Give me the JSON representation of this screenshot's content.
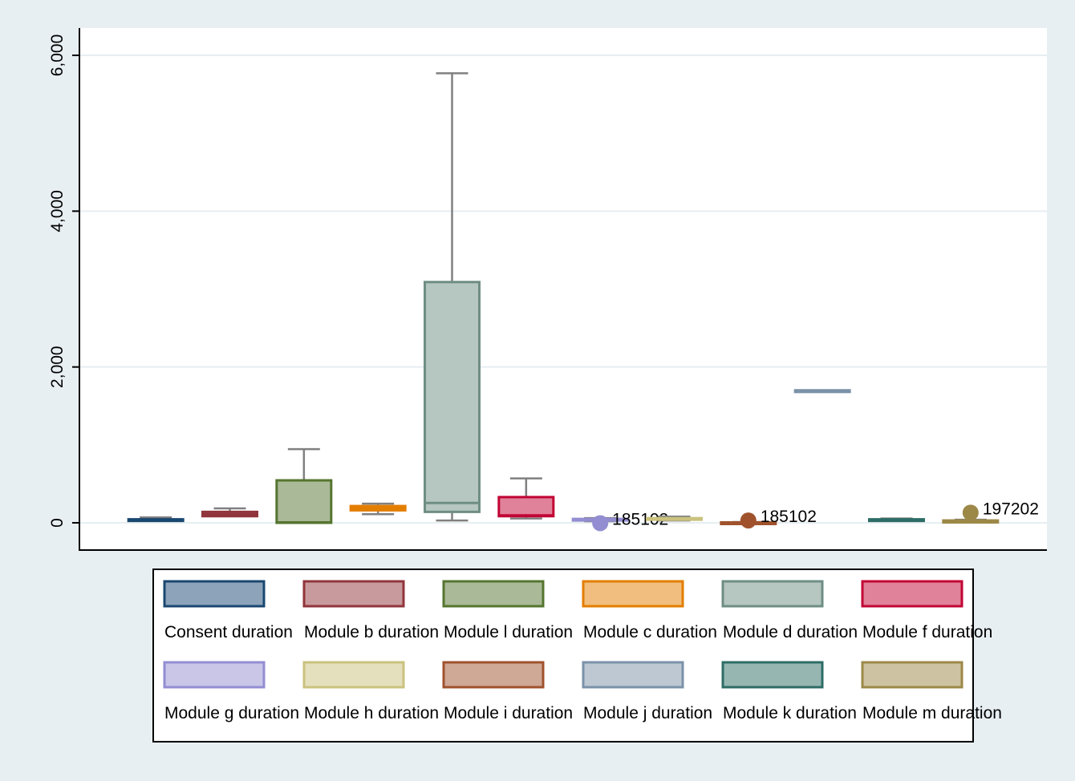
{
  "chart_data": {
    "type": "box",
    "title": "",
    "xlabel": "",
    "ylabel": "",
    "ylim": [
      -350,
      6350
    ],
    "yticks": [
      0,
      2000,
      4000,
      6000
    ],
    "ytick_labels": [
      "0",
      "2,000",
      "4,000",
      "6,000"
    ],
    "grid": true,
    "legend_position": "bottom",
    "series": [
      {
        "name": "Consent duration",
        "color": "#1a476f",
        "fill": "#8ca3ba",
        "whisker_low": 25,
        "q1": 25,
        "median": 35,
        "q3": 45,
        "whisker_high": 70,
        "outliers": []
      },
      {
        "name": "Module b duration",
        "color": "#90353b",
        "fill": "#c89a9d",
        "whisker_low": 85,
        "q1": 85,
        "median": 110,
        "q3": 140,
        "whisker_high": 185,
        "outliers": []
      },
      {
        "name": "Module l duration",
        "color": "#55752f",
        "fill": "#aab997",
        "whisker_low": 0,
        "q1": 0,
        "median": 5,
        "q3": 545,
        "whisker_high": 945,
        "outliers": []
      },
      {
        "name": "Module c duration",
        "color": "#e37e00",
        "fill": "#f1be80",
        "whisker_low": 110,
        "q1": 160,
        "median": 185,
        "q3": 215,
        "whisker_high": 245,
        "outliers": []
      },
      {
        "name": "Module d duration",
        "color": "#6e8e84",
        "fill": "#b6c6c1",
        "whisker_low": 30,
        "q1": 140,
        "median": 255,
        "q3": 3090,
        "whisker_high": 5770,
        "outliers": []
      },
      {
        "name": "Module f duration",
        "color": "#c10534",
        "fill": "#e08299",
        "whisker_low": 55,
        "q1": 85,
        "median": 95,
        "q3": 330,
        "whisker_high": 570,
        "outliers": []
      },
      {
        "name": "Module g duration",
        "color": "#938dd2",
        "fill": "#c9c6e8",
        "whisker_low": 20,
        "q1": 30,
        "median": 40,
        "q3": 50,
        "whisker_high": 60,
        "outliers": [
          {
            "value": -5,
            "label": "185102"
          }
        ]
      },
      {
        "name": "Module h duration",
        "color": "#cac27e",
        "fill": "#e4e0be",
        "whisker_low": 30,
        "q1": 40,
        "median": 50,
        "q3": 60,
        "whisker_high": 80,
        "outliers": []
      },
      {
        "name": "Module i duration",
        "color": "#a0522d",
        "fill": "#cfa896",
        "whisker_low": 0,
        "q1": 0,
        "median": 0,
        "q3": 5,
        "whisker_high": 10,
        "outliers": [
          {
            "value": 30,
            "label": "185102"
          }
        ]
      },
      {
        "name": "Module j duration",
        "color": "#7b92a8",
        "fill": "#bdc8d3",
        "whisker_low": 1700,
        "q1": 1700,
        "median": 1700,
        "q3": 1700,
        "whisker_high": 1700,
        "outliers": []
      },
      {
        "name": "Module k duration",
        "color": "#2d6d66",
        "fill": "#96b6b2",
        "whisker_low": 25,
        "q1": 25,
        "median": 35,
        "q3": 45,
        "whisker_high": 55,
        "outliers": []
      },
      {
        "name": "Module m duration",
        "color": "#9c8847",
        "fill": "#cdc3a3",
        "whisker_low": 5,
        "q1": 5,
        "median": 15,
        "q3": 30,
        "whisker_high": 40,
        "outliers": [
          {
            "value": 130,
            "label": "197202"
          }
        ]
      }
    ]
  }
}
